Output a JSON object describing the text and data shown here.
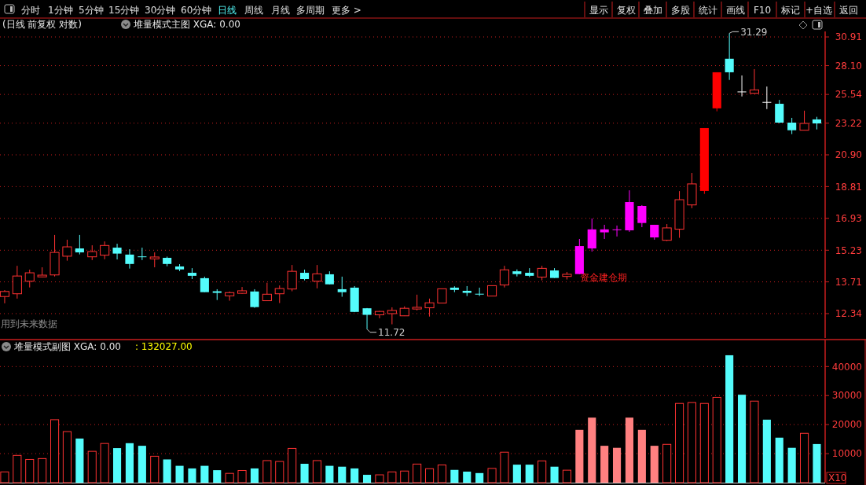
{
  "chart_data": [
    {
      "type": "candlestick",
      "title": "(日线 前复权 对数)",
      "subtitle": "堆量模式主图 XGA: 0.00",
      "categories": [
        null,
        null,
        null,
        null,
        null,
        null,
        null,
        null,
        null,
        null,
        null,
        null,
        null,
        null,
        null,
        null,
        null,
        null,
        null,
        null,
        null,
        null,
        null,
        null,
        null,
        null,
        null,
        null,
        null,
        null,
        null,
        null,
        null,
        null,
        null,
        null,
        null,
        null,
        null,
        null,
        null,
        null,
        null,
        null,
        null,
        null,
        null,
        null,
        null,
        null,
        null,
        null,
        null,
        null,
        null,
        null,
        null,
        null,
        null,
        null,
        null,
        null,
        null,
        null,
        null,
        null
      ],
      "ohlc": [
        [
          13.06,
          13.34,
          12.77,
          13.28
        ],
        [
          13.18,
          14.46,
          12.97,
          13.98
        ],
        [
          13.74,
          14.28,
          13.46,
          14.13
        ],
        [
          13.94,
          14.39,
          13.93,
          14.02
        ],
        [
          14.03,
          16.02,
          13.96,
          15.12
        ],
        [
          14.93,
          15.77,
          14.71,
          15.4
        ],
        [
          15.32,
          16.02,
          15.02,
          15.12
        ],
        [
          14.9,
          15.48,
          14.74,
          15.16
        ],
        [
          14.98,
          15.68,
          14.78,
          15.47
        ],
        [
          15.36,
          15.56,
          14.77,
          15.06
        ],
        [
          15.01,
          15.28,
          14.33,
          14.55
        ],
        [
          14.92,
          15.36,
          14.74,
          14.9
        ],
        [
          14.8,
          15.12,
          14.39,
          14.89
        ],
        [
          14.85,
          14.91,
          14.44,
          14.55
        ],
        [
          14.43,
          14.54,
          14.21,
          14.29
        ],
        [
          14.13,
          14.35,
          13.84,
          13.99
        ],
        [
          13.88,
          13.95,
          13.25,
          13.25
        ],
        [
          13.29,
          13.38,
          12.91,
          13.22
        ],
        [
          13.09,
          13.28,
          12.88,
          13.23
        ],
        [
          13.2,
          13.48,
          13.18,
          13.31
        ],
        [
          13.28,
          13.38,
          12.58,
          12.61
        ],
        [
          12.88,
          13.67,
          12.88,
          13.16
        ],
        [
          13.18,
          13.55,
          12.78,
          13.41
        ],
        [
          13.39,
          14.5,
          13.29,
          14.2
        ],
        [
          14.13,
          14.28,
          13.78,
          13.84
        ],
        [
          13.74,
          14.5,
          13.42,
          14.08
        ],
        [
          14.06,
          14.2,
          13.6,
          13.6
        ],
        [
          13.38,
          13.95,
          13.05,
          13.25
        ],
        [
          13.45,
          13.52,
          12.4,
          12.41
        ],
        [
          12.56,
          12.57,
          11.72,
          12.29
        ],
        [
          12.29,
          12.45,
          12.15,
          12.43
        ],
        [
          12.34,
          12.6,
          11.91,
          12.47
        ],
        [
          12.25,
          12.64,
          12.24,
          12.56
        ],
        [
          12.53,
          13.14,
          12.47,
          12.6
        ],
        [
          12.58,
          12.97,
          12.22,
          12.79
        ],
        [
          12.78,
          13.4,
          12.78,
          13.4
        ],
        [
          13.45,
          13.51,
          13.25,
          13.35
        ],
        [
          13.31,
          13.52,
          13.08,
          13.22
        ],
        [
          13.18,
          13.45,
          13.08,
          13.16
        ],
        [
          13.08,
          13.54,
          13.08,
          13.54
        ],
        [
          13.57,
          14.46,
          13.46,
          14.27
        ],
        [
          14.2,
          14.29,
          13.96,
          14.07
        ],
        [
          14.13,
          14.35,
          13.93,
          13.99
        ],
        [
          13.93,
          14.46,
          13.78,
          14.34
        ],
        [
          14.24,
          14.35,
          13.89,
          13.89
        ],
        [
          13.96,
          14.17,
          13.82,
          14.06
        ],
        [
          14.07,
          15.81,
          14.07,
          15.44
        ],
        [
          15.32,
          16.92,
          15.16,
          16.32
        ],
        [
          16.16,
          16.57,
          15.81,
          16.32
        ],
        [
          16.29,
          16.53,
          15.94,
          16.32
        ],
        [
          16.27,
          18.58,
          16.19,
          17.87
        ],
        [
          17.64,
          17.69,
          16.44,
          16.67
        ],
        [
          16.57,
          16.57,
          15.77,
          15.89
        ],
        [
          15.74,
          16.61,
          15.7,
          16.4
        ],
        [
          16.33,
          18.53,
          15.87,
          18.01
        ],
        [
          17.7,
          19.68,
          17.51,
          18.98
        ],
        [
          18.54,
          22.84,
          18.36,
          22.84
        ],
        [
          24.39,
          27.49,
          24.15,
          27.49
        ],
        [
          28.75,
          31.29,
          26.8,
          27.49
        ],
        [
          25.79,
          27.2,
          25.37,
          25.75
        ],
        [
          25.64,
          27.78,
          25.6,
          25.93
        ],
        [
          24.91,
          26.22,
          24.33,
          24.87
        ],
        [
          24.76,
          25.08,
          23.22,
          23.26
        ],
        [
          23.26,
          23.63,
          22.39,
          22.68
        ],
        [
          22.68,
          24.2,
          22.68,
          23.2
        ],
        [
          23.51,
          23.71,
          22.74,
          23.2
        ]
      ],
      "colors": [
        "#ff3232",
        "#ff3232",
        "#ff3232",
        "#ff3232",
        "#ff3232",
        "#ff3232",
        "#54fcfc",
        "#ff3232",
        "#ff3232",
        "#54fcfc",
        "#54fcfc",
        "#54fcfc",
        "#ff3232",
        "#54fcfc",
        "#54fcfc",
        "#54fcfc",
        "#54fcfc",
        "#54fcfc",
        "#ff3232",
        "#ff3232",
        "#54fcfc",
        "#ff3232",
        "#ff3232",
        "#ff3232",
        "#54fcfc",
        "#ff3232",
        "#54fcfc",
        "#54fcfc",
        "#54fcfc",
        "#54fcfc",
        "#ff3232",
        "#ff3232",
        "#ff3232",
        "#ff3232",
        "#ff3232",
        "#ff3232",
        "#54fcfc",
        "#54fcfc",
        "#54fcfc",
        "#ff3232",
        "#ff3232",
        "#54fcfc",
        "#54fcfc",
        "#ff3232",
        "#54fcfc",
        "#ff3232",
        "#ff00ff",
        "#ff00ff",
        "#ff00ff",
        "#ff00ff",
        "#ff00ff",
        "#ff00ff",
        "#ff00ff",
        "#ff3232",
        "#ff3232",
        "#ff3232",
        "#ff0000",
        "#ff0000",
        "#54fcfc",
        "#ffffff",
        "#ff3232",
        "#ffffff",
        "#54fcfc",
        "#54fcfc",
        "#ff3232",
        "#54fcfc"
      ],
      "ylim": [
        11.38,
        31.48
      ],
      "log": "y",
      "yticks": [
        12.34,
        13.71,
        15.23,
        16.93,
        18.81,
        {
          "value": 20.9,
          "label": "20.90"
        },
        23.22,
        25.54,
        {
          "value": 28.1,
          "label": "28.10"
        },
        30.91
      ],
      "grid": "y",
      "annotations": [
        "分时",
        "1分钟",
        "5分钟",
        "15分钟",
        "30分钟",
        "60分钟",
        "日线",
        "周线",
        "月线",
        "多周期",
        "更多 >",
        "显示",
        "复权",
        "叠加",
        "多股",
        "统计",
        "画线",
        "F10",
        "标记",
        "+自选",
        "返回",
        "资金建仓期",
        "用到未来数据",
        "31.29",
        "11.72"
      ]
    },
    {
      "type": "bar",
      "title": "堆量模式副图 XGA: 0.00",
      "subtitle": ": 132027.00",
      "categories": [
        null,
        null,
        null,
        null,
        null,
        null,
        null,
        null,
        null,
        null,
        null,
        null,
        null,
        null,
        null,
        null,
        null,
        null,
        null,
        null,
        null,
        null,
        null,
        null,
        null,
        null,
        null,
        null,
        null,
        null,
        null,
        null,
        null,
        null,
        null,
        null,
        null,
        null,
        null,
        null,
        null,
        null,
        null,
        null,
        null,
        null,
        null,
        null,
        null,
        null,
        null,
        null,
        null,
        null,
        null,
        null,
        null,
        null,
        null,
        null,
        null,
        null,
        null,
        null,
        null,
        null
      ],
      "values": [
        3700,
        9400,
        8000,
        8300,
        21700,
        17600,
        15200,
        10800,
        13500,
        11900,
        13600,
        12700,
        9100,
        8000,
        5800,
        4900,
        5800,
        4300,
        3200,
        4200,
        4900,
        7600,
        7300,
        11800,
        6500,
        7600,
        5800,
        5500,
        4900,
        2700,
        2700,
        3700,
        4000,
        6400,
        4800,
        6100,
        4400,
        3800,
        3300,
        4900,
        10500,
        6200,
        6200,
        7500,
        5500,
        4300,
        18200,
        22400,
        12700,
        12000,
        22400,
        18200,
        12700,
        13200,
        27300,
        27600,
        27300,
        29400,
        43900,
        30300,
        28100,
        21700,
        15500,
        12000,
        17000,
        13300
      ],
      "colors": [
        "#ff3232",
        "#ff3232",
        "#ff3232",
        "#ff3232",
        "#ff3232",
        "#ff3232",
        "#54fcfc",
        "#ff3232",
        "#ff3232",
        "#54fcfc",
        "#54fcfc",
        "#54fcfc",
        "#ff3232",
        "#54fcfc",
        "#54fcfc",
        "#54fcfc",
        "#54fcfc",
        "#54fcfc",
        "#ff3232",
        "#ff3232",
        "#54fcfc",
        "#ff3232",
        "#ff3232",
        "#ff3232",
        "#54fcfc",
        "#ff3232",
        "#54fcfc",
        "#54fcfc",
        "#54fcfc",
        "#54fcfc",
        "#ff3232",
        "#ff3232",
        "#ff3232",
        "#ff3232",
        "#ff3232",
        "#ff3232",
        "#54fcfc",
        "#54fcfc",
        "#54fcfc",
        "#ff3232",
        "#ff3232",
        "#54fcfc",
        "#54fcfc",
        "#ff3232",
        "#54fcfc",
        "#ff3232",
        "#ff8080",
        "#ff8080",
        "#ff8080",
        "#ff8080",
        "#ff8080",
        "#ff8080",
        "#ff8080",
        "#ff3232",
        "#ff3232",
        "#ff3232",
        "#ff3232",
        "#ff3232",
        "#54fcfc",
        "#54fcfc",
        "#ff3232",
        "#54fcfc",
        "#54fcfc",
        "#54fcfc",
        "#ff3232",
        "#54fcfc"
      ],
      "ylim": [
        0,
        49300
      ],
      "yticks": [
        10000,
        20000,
        30000,
        40000
      ],
      "grid": "y",
      "annotations": [
        "X10"
      ]
    }
  ]
}
